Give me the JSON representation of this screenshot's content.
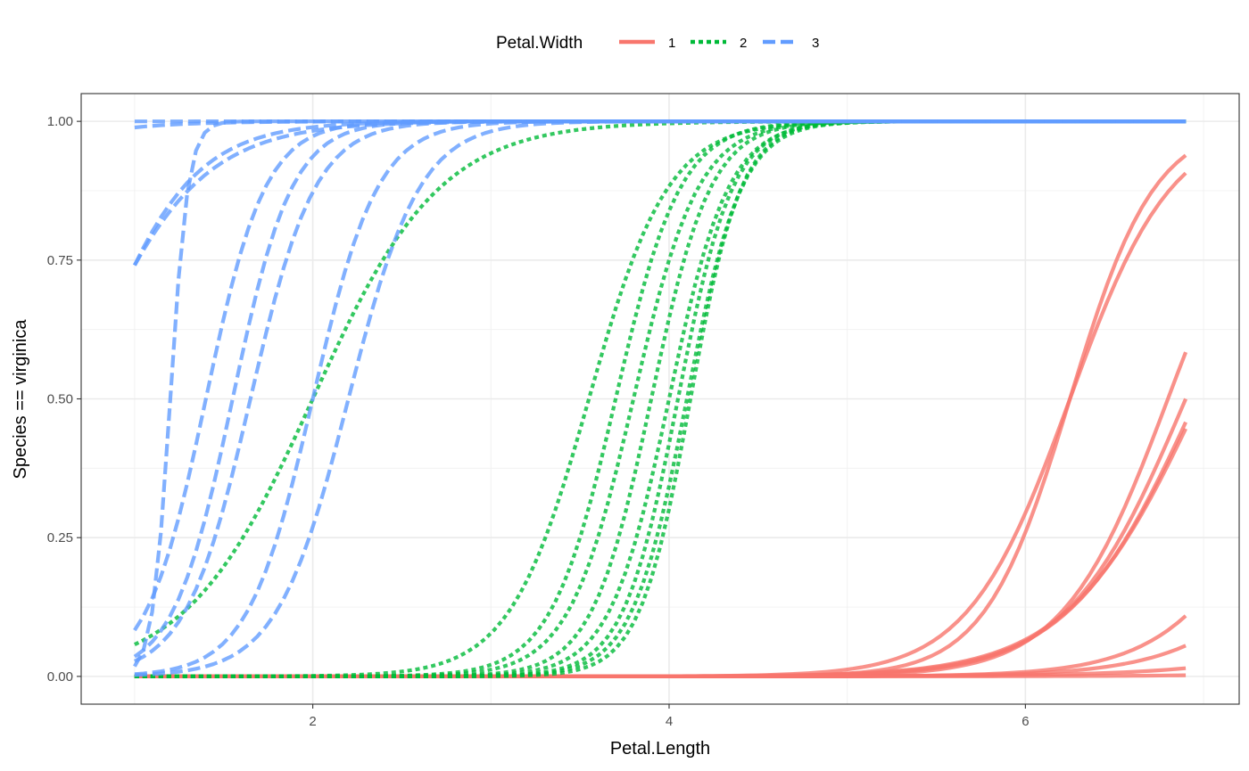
{
  "chart_data": {
    "type": "line",
    "xlabel": "Petal.Length",
    "ylabel": "Species == virginica",
    "xlim": [
      0.7,
      7.2
    ],
    "ylim": [
      -0.05,
      1.05
    ],
    "x_ticks": [
      2,
      4,
      6
    ],
    "x_tick_labels": [
      "2",
      "4",
      "6"
    ],
    "y_ticks": [
      0,
      0.25,
      0.5,
      0.75,
      1.0
    ],
    "y_tick_labels": [
      "0.00",
      "0.25",
      "0.50",
      "0.75",
      "1.00"
    ],
    "grid": true,
    "legend": {
      "title": "Petal.Width",
      "position": "top",
      "entries": [
        {
          "label": "1",
          "color": "#F8766D",
          "dash": "solid"
        },
        {
          "label": "2",
          "color": "#00BA38",
          "dash": "dotted"
        },
        {
          "label": "3",
          "color": "#619CFF",
          "dash": "dashed"
        }
      ]
    },
    "x_range": [
      1.0,
      6.9
    ],
    "series": [
      {
        "group": "1",
        "color": "#F8766D",
        "dash": "solid",
        "midpoint": 6.25,
        "slope": 3.5,
        "max": 1.0
      },
      {
        "group": "1",
        "color": "#F8766D",
        "dash": "solid",
        "midpoint": 6.25,
        "slope": 4.2,
        "max": 1.0
      },
      {
        "group": "1",
        "color": "#F8766D",
        "dash": "solid",
        "midpoint": 6.8,
        "slope": 3.4,
        "max": 1.0
      },
      {
        "group": "1",
        "color": "#F8766D",
        "dash": "solid",
        "midpoint": 6.9,
        "slope": 3.0,
        "max": 1.0
      },
      {
        "group": "1",
        "color": "#F8766D",
        "dash": "solid",
        "midpoint": 6.96,
        "slope": 2.8,
        "max": 1.0
      },
      {
        "group": "1",
        "color": "#F8766D",
        "dash": "solid",
        "midpoint": 6.98,
        "slope": 2.7,
        "max": 1.0
      },
      {
        "group": "1",
        "color": "#F8766D",
        "dash": "solid",
        "midpoint": 7.6,
        "slope": 3.0,
        "max": 1.0
      },
      {
        "group": "1",
        "color": "#F8766D",
        "dash": "solid",
        "midpoint": 7.95,
        "slope": 2.7,
        "max": 1.0
      },
      {
        "group": "1",
        "color": "#F8766D",
        "dash": "solid",
        "midpoint": 9.0,
        "slope": 2.0,
        "max": 1.0
      },
      {
        "group": "1",
        "color": "#F8766D",
        "dash": "solid",
        "midpoint": 10.0,
        "slope": 2.0,
        "max": 1.0
      },
      {
        "group": "2",
        "color": "#00BA38",
        "dash": "dotted",
        "midpoint": 2.0,
        "slope": 2.8,
        "max": 1.0
      },
      {
        "group": "2",
        "color": "#00BA38",
        "dash": "dotted",
        "midpoint": 3.55,
        "slope": 4.5,
        "max": 1.0
      },
      {
        "group": "2",
        "color": "#00BA38",
        "dash": "dotted",
        "midpoint": 3.7,
        "slope": 5.5,
        "max": 1.0
      },
      {
        "group": "2",
        "color": "#00BA38",
        "dash": "dotted",
        "midpoint": 3.8,
        "slope": 5.5,
        "max": 1.0
      },
      {
        "group": "2",
        "color": "#00BA38",
        "dash": "dotted",
        "midpoint": 3.9,
        "slope": 6.0,
        "max": 1.0
      },
      {
        "group": "2",
        "color": "#00BA38",
        "dash": "dotted",
        "midpoint": 4.0,
        "slope": 6.0,
        "max": 1.0
      },
      {
        "group": "2",
        "color": "#00BA38",
        "dash": "dotted",
        "midpoint": 4.05,
        "slope": 6.5,
        "max": 1.0
      },
      {
        "group": "2",
        "color": "#00BA38",
        "dash": "dotted",
        "midpoint": 4.1,
        "slope": 6.5,
        "max": 1.0
      },
      {
        "group": "2",
        "color": "#00BA38",
        "dash": "dotted",
        "midpoint": 4.12,
        "slope": 7.0,
        "max": 1.0
      },
      {
        "group": "3",
        "color": "#619CFF",
        "dash": "dashed",
        "midpoint": 1.2,
        "slope": 20.0,
        "max": 1.0
      },
      {
        "group": "3",
        "color": "#619CFF",
        "dash": "dashed",
        "midpoint": 1.4,
        "slope": 6.0,
        "max": 1.0
      },
      {
        "group": "3",
        "color": "#619CFF",
        "dash": "dashed",
        "midpoint": 1.55,
        "slope": 6.0,
        "max": 1.0
      },
      {
        "group": "3",
        "color": "#619CFF",
        "dash": "dashed",
        "midpoint": 1.65,
        "slope": 5.5,
        "max": 1.0
      },
      {
        "group": "3",
        "color": "#619CFF",
        "dash": "dashed",
        "midpoint": 2.0,
        "slope": 5.5,
        "max": 1.0
      },
      {
        "group": "3",
        "color": "#619CFF",
        "dash": "dashed",
        "midpoint": 2.2,
        "slope": 5.0,
        "max": 1.0
      },
      {
        "group": "3",
        "color": "#619CFF",
        "dash": "dashed",
        "midpoint": 0.65,
        "slope": 3.0,
        "max": 1.0
      },
      {
        "group": "3",
        "color": "#619CFF",
        "dash": "dashed",
        "midpoint": 0.7,
        "slope": 3.5,
        "max": 1.0
      },
      {
        "group": "3",
        "color": "#619CFF",
        "dash": "dashed",
        "midpoint": -0.5,
        "slope": 3.0,
        "max": 1.0
      },
      {
        "group": "3",
        "color": "#619CFF",
        "dash": "dashed",
        "midpoint": -2.0,
        "slope": 3.0,
        "max": 1.0
      }
    ]
  }
}
